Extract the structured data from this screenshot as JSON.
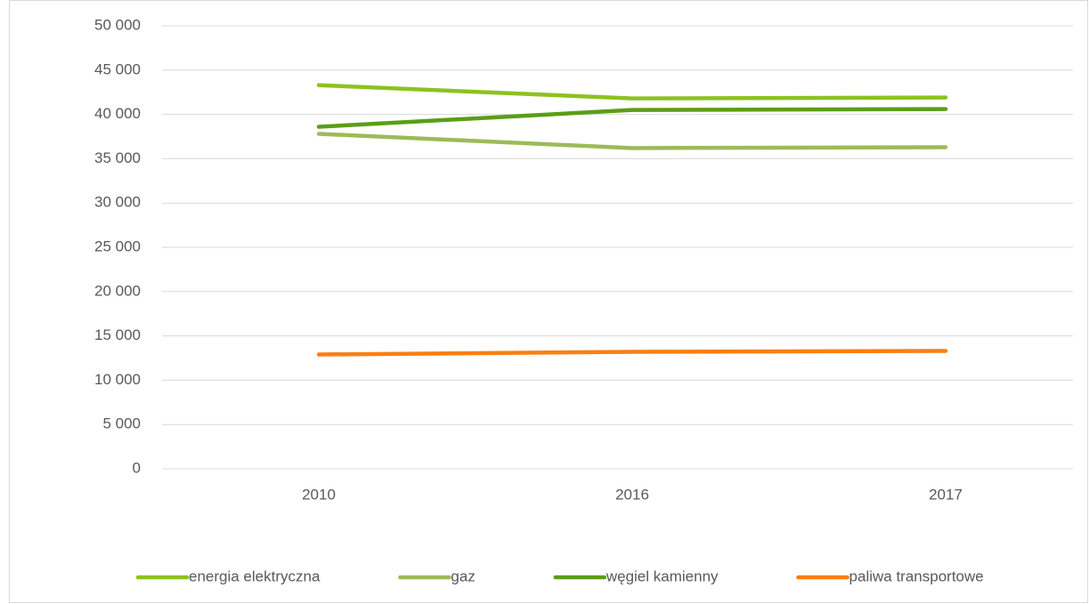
{
  "chart_data": {
    "type": "line",
    "categories": [
      "2010",
      "2016",
      "2017"
    ],
    "series": [
      {
        "name": "energia elektryczna",
        "color": "#8cc220",
        "values": [
          43300,
          41800,
          41900
        ]
      },
      {
        "name": "gaz",
        "color": "#9bbb59",
        "values": [
          37800,
          36200,
          36300
        ]
      },
      {
        "name": "węgiel kamienny",
        "color": "#5a9e16",
        "values": [
          38600,
          40500,
          40600
        ]
      },
      {
        "name": "paliwa transportowe",
        "color": "#fa7f12",
        "values": [
          12900,
          13200,
          13300
        ]
      }
    ],
    "ylim": [
      0,
      50000
    ],
    "yticks": [
      0,
      {
        "value": 5000,
        "label": "5 000"
      },
      {
        "value": 10000,
        "label": "10 000"
      },
      {
        "value": 15000,
        "label": "15 000"
      },
      {
        "value": 20000,
        "label": "20 000"
      },
      {
        "value": 25000,
        "label": "25 000"
      },
      {
        "value": 30000,
        "label": "30 000"
      },
      {
        "value": 35000,
        "label": "35 000"
      },
      {
        "value": 40000,
        "label": "40 000"
      },
      {
        "value": 45000,
        "label": "45 000"
      },
      {
        "value": 50000,
        "label": "50 000"
      }
    ],
    "grid": true,
    "legend": "bottom"
  }
}
